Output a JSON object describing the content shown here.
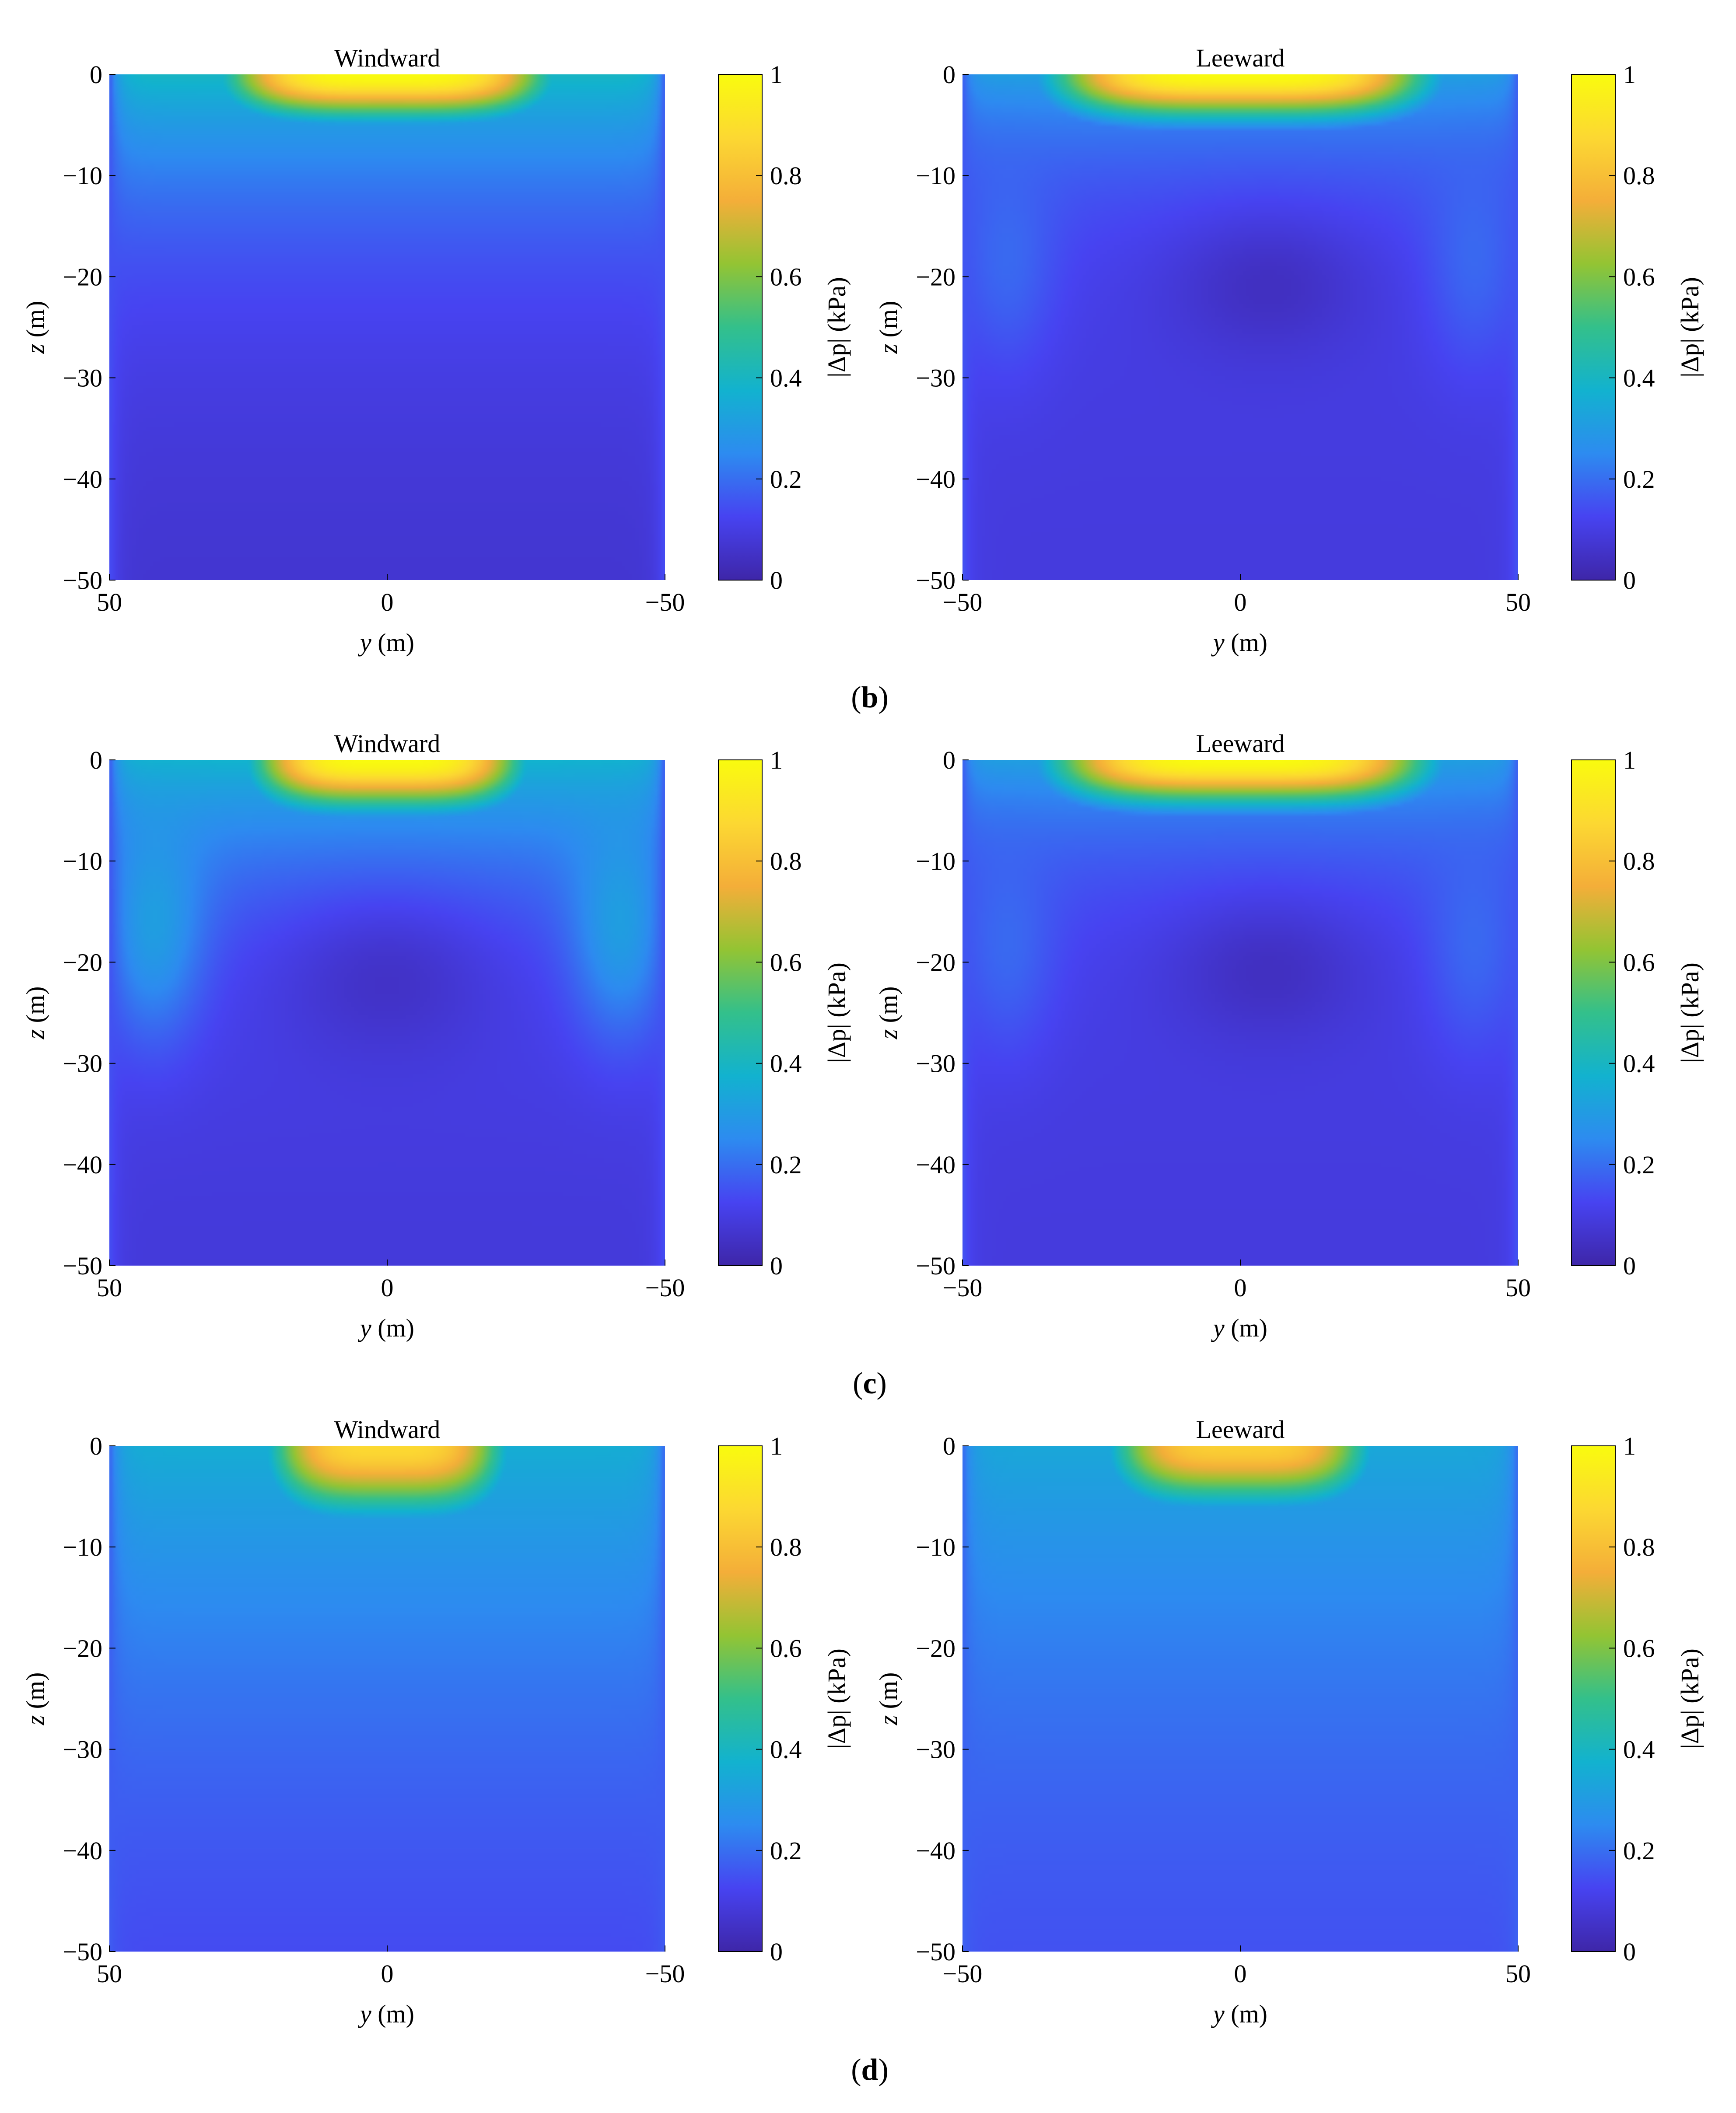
{
  "figure": {
    "colormap": "parula",
    "colormap_stops": [
      "#3e26a8",
      "#4743f1",
      "#2d8bf0",
      "#12b2cf",
      "#33c08b",
      "#93c433",
      "#f4ae39",
      "#fcd832",
      "#f9fb0e"
    ],
    "captions": [
      {
        "text": "b",
        "wrap": [
          "(",
          ")"
        ]
      },
      {
        "text": "c",
        "wrap": [
          "(",
          ")"
        ]
      },
      {
        "text": "d",
        "wrap": [
          "(",
          ")"
        ]
      }
    ]
  },
  "chart_data": [
    {
      "type": "heatmap",
      "row": "b",
      "side": "left",
      "title": "Windward",
      "xlabel_var": "y",
      "xlabel_unit": " (m)",
      "ylabel_var": "z",
      "ylabel_unit": " (m)",
      "colorbar_label": "|Δp| (kPa)",
      "colorbar_range": [
        0,
        1
      ],
      "colorbar_ticks": [
        "0",
        "0.2",
        "0.4",
        "0.6",
        "0.8",
        "1"
      ],
      "xlim": [
        50,
        -50
      ],
      "xticks": [
        "50",
        "0",
        "−50"
      ],
      "ylim": [
        -50,
        0
      ],
      "yticks": [
        "0",
        "−10",
        "−20",
        "−30",
        "−40",
        "−50"
      ],
      "field_model": {
        "surface_peak": 1.0,
        "surface_half_width_m": 30,
        "surface_depth_m": 4.5,
        "mid_level": 0.4,
        "mid_depth_m": 14,
        "edge_value": 0.15,
        "deep_value": 0.06,
        "lobes": [],
        "pits": []
      }
    },
    {
      "type": "heatmap",
      "row": "b",
      "side": "right",
      "title": "Leeward",
      "xlabel_var": "y",
      "xlabel_unit": " (m)",
      "ylabel_var": "z",
      "ylabel_unit": " (m)",
      "colorbar_label": "|Δp| (kPa)",
      "colorbar_range": [
        0,
        1
      ],
      "colorbar_ticks": [
        "0",
        "0.2",
        "0.4",
        "0.6",
        "0.8",
        "1"
      ],
      "xlim": [
        -50,
        50
      ],
      "xticks": [
        "−50",
        "0",
        "50"
      ],
      "ylim": [
        -50,
        0
      ],
      "yticks": [
        "0",
        "−10",
        "−20",
        "−30",
        "−40",
        "−50"
      ],
      "field_model": {
        "surface_peak": 1.0,
        "surface_half_width_m": 35,
        "surface_depth_m": 4.5,
        "mid_level": 0.32,
        "mid_depth_m": 9,
        "edge_value": 0.16,
        "deep_value": 0.09,
        "lobes": [
          {
            "y": -42,
            "z": -18,
            "v": 0.2
          },
          {
            "y": 42,
            "z": -18,
            "v": 0.2
          }
        ],
        "pits": [
          {
            "y": 5,
            "z": -21,
            "v": 0.03,
            "ry": 18,
            "rz": 7
          }
        ]
      }
    },
    {
      "type": "heatmap",
      "row": "c",
      "side": "left",
      "title": "Windward",
      "xlabel_var": "y",
      "xlabel_unit": " (m)",
      "ylabel_var": "z",
      "ylabel_unit": " (m)",
      "colorbar_label": "|Δp| (kPa)",
      "colorbar_range": [
        0,
        1
      ],
      "colorbar_ticks": [
        "0",
        "0.2",
        "0.4",
        "0.6",
        "0.8",
        "1"
      ],
      "xlim": [
        50,
        -50
      ],
      "xticks": [
        "50",
        "0",
        "−50"
      ],
      "ylim": [
        -50,
        0
      ],
      "yticks": [
        "0",
        "−10",
        "−20",
        "−30",
        "−40",
        "−50"
      ],
      "field_model": {
        "surface_peak": 1.0,
        "surface_half_width_m": 25,
        "surface_depth_m": 5,
        "mid_level": 0.38,
        "mid_depth_m": 12,
        "edge_value": 0.15,
        "deep_value": 0.08,
        "lobes": [
          {
            "y": -42,
            "z": -16,
            "v": 0.33
          },
          {
            "y": 42,
            "z": -16,
            "v": 0.33
          }
        ],
        "pits": [
          {
            "y": 0,
            "z": -22,
            "v": 0.04,
            "ry": 20,
            "rz": 8
          }
        ]
      }
    },
    {
      "type": "heatmap",
      "row": "c",
      "side": "right",
      "title": "Leeward",
      "xlabel_var": "y",
      "xlabel_unit": " (m)",
      "ylabel_var": "z",
      "ylabel_unit": " (m)",
      "colorbar_label": "|Δp| (kPa)",
      "colorbar_range": [
        0,
        1
      ],
      "colorbar_ticks": [
        "0",
        "0.2",
        "0.4",
        "0.6",
        "0.8",
        "1"
      ],
      "xlim": [
        -50,
        50
      ],
      "xticks": [
        "−50",
        "0",
        "50"
      ],
      "ylim": [
        -50,
        0
      ],
      "yticks": [
        "0",
        "−10",
        "−20",
        "−30",
        "−40",
        "−50"
      ],
      "field_model": {
        "surface_peak": 1.0,
        "surface_half_width_m": 35,
        "surface_depth_m": 4.5,
        "mid_level": 0.32,
        "mid_depth_m": 9,
        "edge_value": 0.16,
        "deep_value": 0.09,
        "lobes": [
          {
            "y": -42,
            "z": -18,
            "v": 0.2
          },
          {
            "y": 42,
            "z": -18,
            "v": 0.2
          }
        ],
        "pits": [
          {
            "y": 5,
            "z": -21,
            "v": 0.03,
            "ry": 18,
            "rz": 7
          }
        ]
      }
    },
    {
      "type": "heatmap",
      "row": "d",
      "side": "left",
      "title": "Windward",
      "xlabel_var": "y",
      "xlabel_unit": " (m)",
      "ylabel_var": "z",
      "ylabel_unit": " (m)",
      "colorbar_label": "|Δp| (kPa)",
      "colorbar_range": [
        0,
        1
      ],
      "colorbar_ticks": [
        "0",
        "0.2",
        "0.4",
        "0.6",
        "0.8",
        "1"
      ],
      "xlim": [
        50,
        -50
      ],
      "xticks": [
        "50",
        "0",
        "−50"
      ],
      "ylim": [
        -50,
        0
      ],
      "yticks": [
        "0",
        "−10",
        "−20",
        "−30",
        "−40",
        "−50"
      ],
      "field_model": {
        "surface_peak": 0.88,
        "surface_half_width_m": 22,
        "surface_depth_m": 7,
        "mid_level": 0.36,
        "mid_depth_m": 32,
        "edge_value": 0.17,
        "deep_value": 0.08,
        "lobes": [],
        "pits": []
      }
    },
    {
      "type": "heatmap",
      "row": "d",
      "side": "right",
      "title": "Leeward",
      "xlabel_var": "y",
      "xlabel_unit": " (m)",
      "ylabel_var": "z",
      "ylabel_unit": " (m)",
      "colorbar_label": "|Δp| (kPa)",
      "colorbar_range": [
        0,
        1
      ],
      "colorbar_ticks": [
        "0",
        "0.2",
        "0.4",
        "0.6",
        "0.8",
        "1"
      ],
      "xlim": [
        -50,
        50
      ],
      "xticks": [
        "−50",
        "0",
        "50"
      ],
      "ylim": [
        -50,
        0
      ],
      "yticks": [
        "0",
        "−10",
        "−20",
        "−30",
        "−40",
        "−50"
      ],
      "field_model": {
        "surface_peak": 0.85,
        "surface_half_width_m": 24,
        "surface_depth_m": 6,
        "mid_level": 0.34,
        "mid_depth_m": 32,
        "edge_value": 0.18,
        "deep_value": 0.1,
        "lobes": [],
        "pits": []
      }
    }
  ]
}
